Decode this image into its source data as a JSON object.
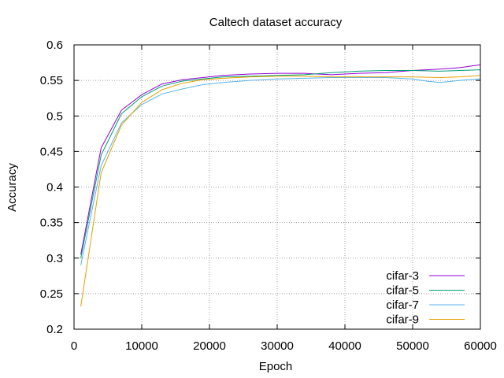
{
  "chart_data": {
    "type": "line",
    "title": "Caltech dataset accuracy",
    "xlabel": "Epoch",
    "ylabel": "Accuracy",
    "xlim": [
      0,
      60000
    ],
    "ylim": [
      0.2,
      0.6
    ],
    "xticks": [
      0,
      10000,
      20000,
      30000,
      40000,
      50000,
      60000
    ],
    "xtick_labels": [
      "0",
      "10000",
      "20000",
      "30000",
      "40000",
      "50000",
      "60000"
    ],
    "yticks": [
      0.2,
      0.25,
      0.3,
      0.35,
      0.4,
      0.45,
      0.5,
      0.55,
      0.6
    ],
    "ytick_labels": [
      "0.2",
      "0.25",
      "0.3",
      "0.35",
      "0.4",
      "0.45",
      "0.5",
      "0.55",
      "0.6"
    ],
    "grid": true,
    "legend_position": "bottom-right",
    "series": [
      {
        "name": "cifar-3",
        "color": "#9400d3",
        "x": [
          1000,
          4000,
          7000,
          10000,
          13000,
          16000,
          19000,
          22000,
          26000,
          30000,
          34000,
          38000,
          42000,
          46000,
          50000,
          54000,
          57000,
          60000
        ],
        "y": [
          0.305,
          0.455,
          0.508,
          0.53,
          0.545,
          0.551,
          0.554,
          0.557,
          0.559,
          0.56,
          0.56,
          0.558,
          0.56,
          0.561,
          0.564,
          0.566,
          0.568,
          0.572
        ]
      },
      {
        "name": "cifar-5",
        "color": "#009e73",
        "x": [
          1000,
          4000,
          7000,
          10000,
          13000,
          16000,
          19000,
          22000,
          26000,
          30000,
          34000,
          38000,
          42000,
          46000,
          50000,
          54000,
          57000,
          60000
        ],
        "y": [
          0.3,
          0.445,
          0.503,
          0.527,
          0.542,
          0.549,
          0.552,
          0.555,
          0.556,
          0.557,
          0.558,
          0.561,
          0.563,
          0.564,
          0.564,
          0.563,
          0.564,
          0.565
        ]
      },
      {
        "name": "cifar-7",
        "color": "#56b4e9",
        "x": [
          1000,
          4000,
          7000,
          10000,
          13000,
          16000,
          19000,
          22000,
          26000,
          30000,
          34000,
          38000,
          42000,
          46000,
          50000,
          52000,
          54000,
          56000,
          58000,
          60000
        ],
        "y": [
          0.29,
          0.43,
          0.49,
          0.516,
          0.531,
          0.538,
          0.544,
          0.547,
          0.55,
          0.552,
          0.553,
          0.554,
          0.554,
          0.554,
          0.552,
          0.549,
          0.547,
          0.549,
          0.551,
          0.552
        ]
      },
      {
        "name": "cifar-9",
        "color": "#e69f00",
        "x": [
          1000,
          4000,
          7000,
          10000,
          13000,
          16000,
          19000,
          22000,
          26000,
          30000,
          34000,
          38000,
          42000,
          46000,
          50000,
          54000,
          57000,
          60000
        ],
        "y": [
          0.232,
          0.42,
          0.487,
          0.519,
          0.537,
          0.546,
          0.551,
          0.553,
          0.555,
          0.556,
          0.556,
          0.555,
          0.555,
          0.555,
          0.555,
          0.554,
          0.555,
          0.557
        ]
      }
    ]
  }
}
